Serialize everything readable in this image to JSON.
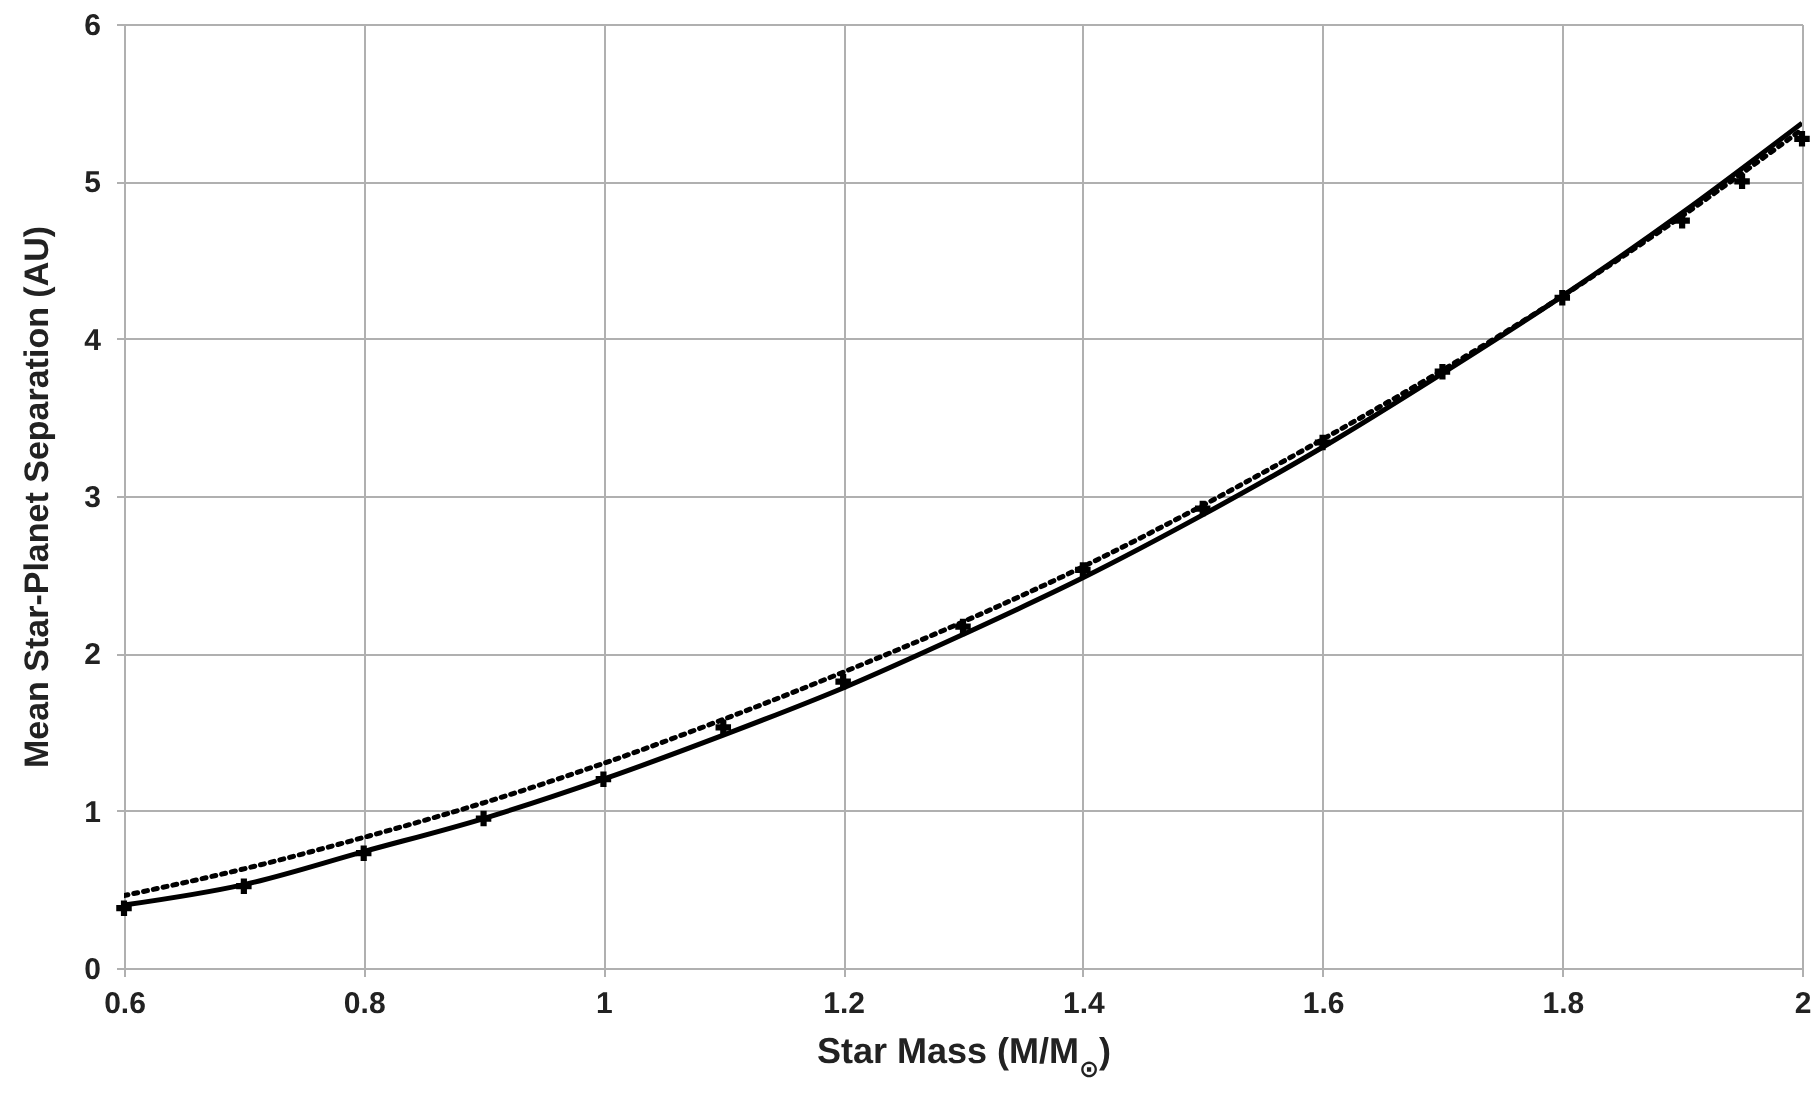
{
  "chart_data": {
    "type": "line",
    "xlabel": "Star Mass (M/M$_{⊙}$)",
    "ylabel": "Mean Star-Planet Separation (AU)",
    "xlim": [
      0.6,
      2
    ],
    "xticks": [
      0.6,
      0.8,
      1,
      1.2,
      1.4,
      1.6,
      1.8,
      2
    ],
    "ylim": [
      0,
      6
    ],
    "yticks": [
      0,
      1,
      2,
      3,
      4,
      5,
      6
    ],
    "grid": true,
    "series": [
      {
        "type": "scatter",
        "marker": "cross",
        "color": "#000000",
        "x": [
          0.6,
          0.7,
          0.8,
          0.9,
          1.0,
          1.1,
          1.2,
          1.3,
          1.4,
          1.5,
          1.6,
          1.7,
          1.8,
          1.9,
          1.95,
          2.0
        ],
        "values": [
          0.38,
          0.52,
          0.73,
          0.95,
          1.2,
          1.53,
          1.82,
          2.17,
          2.53,
          2.92,
          3.34,
          3.79,
          4.26,
          4.75,
          5.0,
          5.27
        ]
      },
      {
        "line_style": "solid",
        "color": "#000000",
        "x": [
          0.6,
          0.7,
          0.8,
          0.9,
          1.0,
          1.1,
          1.2,
          1.3,
          1.4,
          1.5,
          1.6,
          1.7,
          1.8,
          1.9,
          2.0
        ],
        "values": [
          0.4,
          0.53,
          0.74,
          0.95,
          1.2,
          1.48,
          1.78,
          2.12,
          2.48,
          2.88,
          3.31,
          3.78,
          4.27,
          4.8,
          5.37
        ]
      },
      {
        "line_style": "dotted",
        "color": "#000000",
        "x": [
          0.6,
          0.7,
          0.8,
          0.9,
          1.0,
          1.1,
          1.2,
          1.3,
          1.4,
          1.5,
          1.6,
          1.7,
          1.8,
          1.9,
          2.0
        ],
        "values": [
          0.46,
          0.63,
          0.83,
          1.05,
          1.3,
          1.58,
          1.88,
          2.2,
          2.55,
          2.94,
          3.36,
          3.8,
          4.27,
          4.78,
          5.33
        ]
      }
    ]
  }
}
